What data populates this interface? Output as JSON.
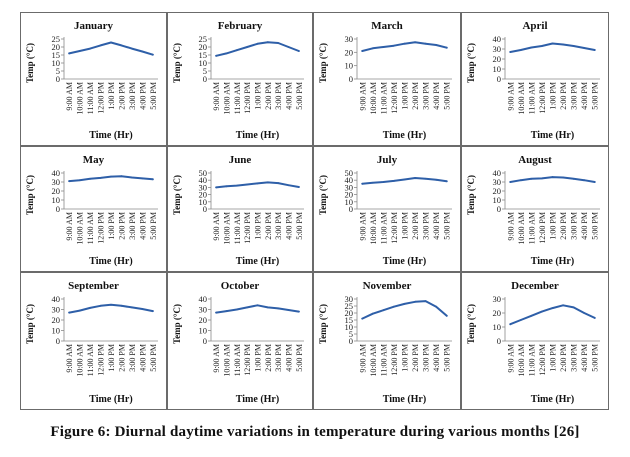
{
  "caption": "Figure 6: Diurnal daytime variations in temperature during various months [26]",
  "chart_data": [
    {
      "type": "line",
      "title": "January",
      "xlabel": "Time (Hr)",
      "ylabel": "Temp (°C)",
      "categories": [
        "9:00 AM",
        "10:00 AM",
        "11:00 AM",
        "12:00 PM",
        "1:00 PM",
        "2:00 PM",
        "3:00 PM",
        "4:00 PM",
        "5:00 PM"
      ],
      "yticks": [
        0,
        5,
        10,
        15,
        20,
        25
      ],
      "ylim": [
        0,
        25
      ],
      "values": [
        16,
        17.5,
        19,
        21,
        22.8,
        21,
        19,
        17.2,
        15.2
      ],
      "color": "#2e5fa8"
    },
    {
      "type": "line",
      "title": "February",
      "xlabel": "Time (Hr)",
      "ylabel": "Temp (°C)",
      "categories": [
        "9:00 AM",
        "10:00 AM",
        "11:00 AM",
        "12:00 PM",
        "1:00 PM",
        "2:00 PM",
        "3:00 PM",
        "4:00 PM",
        "5:00 PM"
      ],
      "yticks": [
        0,
        5,
        10,
        15,
        20,
        25
      ],
      "ylim": [
        0,
        25
      ],
      "values": [
        14.5,
        16,
        18,
        20,
        22,
        23,
        22.5,
        20,
        17.5
      ],
      "color": "#2e5fa8"
    },
    {
      "type": "line",
      "title": "March",
      "xlabel": "Time (Hr)",
      "ylabel": "Temp (°C)",
      "categories": [
        "9:00 AM",
        "10:00 AM",
        "11:00 AM",
        "12:00 PM",
        "1:00 PM",
        "2:00 PM",
        "3:00 PM",
        "4:00 PM",
        "5:00 PM"
      ],
      "yticks": [
        0,
        10,
        20,
        30
      ],
      "ylim": [
        0,
        30
      ],
      "values": [
        21,
        23,
        24,
        25,
        26.5,
        27.5,
        26.5,
        25.5,
        23.5
      ],
      "color": "#2e5fa8"
    },
    {
      "type": "line",
      "title": "April",
      "xlabel": "Time (Hr)",
      "ylabel": "Temp (°C)",
      "categories": [
        "9:00 AM",
        "10:00 AM",
        "11:00 AM",
        "12:00 PM",
        "1:00 PM",
        "2:00 PM",
        "3:00 PM",
        "4:00 PM",
        "5:00 PM"
      ],
      "yticks": [
        0,
        10,
        20,
        30,
        40
      ],
      "ylim": [
        0,
        40
      ],
      "values": [
        27,
        29,
        31.5,
        33,
        35.5,
        34.5,
        33,
        31,
        29
      ],
      "color": "#2e5fa8"
    },
    {
      "type": "line",
      "title": "May",
      "xlabel": "Time (Hr)",
      "ylabel": "Temp (°C)",
      "categories": [
        "9:00 AM",
        "10:00 AM",
        "11:00 AM",
        "12:00 PM",
        "1:00 PM",
        "2:00 PM",
        "3:00 PM",
        "4:00 PM",
        "5:00 PM"
      ],
      "yticks": [
        0,
        10,
        20,
        30,
        40
      ],
      "ylim": [
        0,
        40
      ],
      "values": [
        31,
        32,
        33.5,
        34.5,
        36,
        36.5,
        35,
        34,
        33
      ],
      "color": "#2e5fa8"
    },
    {
      "type": "line",
      "title": "June",
      "xlabel": "Time (Hr)",
      "ylabel": "Temp (°C)",
      "categories": [
        "9:00 AM",
        "10:00 AM",
        "11:00 AM",
        "12:00 PM",
        "1:00 PM",
        "2:00 PM",
        "3:00 PM",
        "4:00 PM",
        "5:00 PM"
      ],
      "yticks": [
        0,
        10,
        20,
        30,
        40,
        50
      ],
      "ylim": [
        0,
        50
      ],
      "values": [
        30,
        31.5,
        32.5,
        34,
        35.5,
        37,
        36,
        33,
        30.5
      ],
      "color": "#2e5fa8"
    },
    {
      "type": "line",
      "title": "July",
      "xlabel": "Time (Hr)",
      "ylabel": "Temp (°C)",
      "categories": [
        "9:00 AM",
        "10:00 AM",
        "11:00 AM",
        "12:00 PM",
        "1:00 PM",
        "2:00 PM",
        "3:00 PM",
        "4:00 PM",
        "5:00 PM"
      ],
      "yticks": [
        0,
        10,
        20,
        30,
        40,
        50
      ],
      "ylim": [
        0,
        50
      ],
      "values": [
        35,
        36.5,
        37.5,
        39,
        41,
        43,
        42,
        40.5,
        38.5
      ],
      "color": "#2e5fa8"
    },
    {
      "type": "line",
      "title": "August",
      "xlabel": "Time (Hr)",
      "ylabel": "Temp (°C)",
      "categories": [
        "9:00 AM",
        "10:00 AM",
        "11:00 AM",
        "12:00 PM",
        "1:00 PM",
        "2:00 PM",
        "3:00 PM",
        "4:00 PM",
        "5:00 PM"
      ],
      "yticks": [
        0,
        10,
        20,
        30,
        40
      ],
      "ylim": [
        0,
        40
      ],
      "values": [
        30,
        32,
        33.5,
        34,
        35.5,
        35,
        33.5,
        32,
        30
      ],
      "color": "#2e5fa8"
    },
    {
      "type": "line",
      "title": "September",
      "xlabel": "Time (Hr)",
      "ylabel": "Temp (°C)",
      "categories": [
        "9:00 AM",
        "10:00 AM",
        "11:00 AM",
        "12:00 PM",
        "1:00 PM",
        "2:00 PM",
        "3:00 PM",
        "4:00 PM",
        "5:00 PM"
      ],
      "yticks": [
        0,
        10,
        20,
        30,
        40
      ],
      "ylim": [
        0,
        40
      ],
      "values": [
        27,
        29,
        31.5,
        33.5,
        34.5,
        33.5,
        32,
        30.5,
        28.5
      ],
      "color": "#2e5fa8"
    },
    {
      "type": "line",
      "title": "October",
      "xlabel": "Time (Hr)",
      "ylabel": "Temp (°C)",
      "categories": [
        "9:00 AM",
        "10:00 AM",
        "11:00 AM",
        "12:00 PM",
        "1:00 PM",
        "2:00 PM",
        "3:00 PM",
        "4:00 PM",
        "5:00 PM"
      ],
      "yticks": [
        0,
        10,
        20,
        30,
        40
      ],
      "ylim": [
        0,
        40
      ],
      "values": [
        27,
        28.5,
        30,
        32,
        34,
        32,
        31,
        29.5,
        28
      ],
      "color": "#2e5fa8"
    },
    {
      "type": "line",
      "title": "November",
      "xlabel": "Time (Hr)",
      "ylabel": "Temp (°C)",
      "categories": [
        "9:00 AM",
        "10:00 AM",
        "11:00 AM",
        "12:00 PM",
        "1:00 PM",
        "2:00 PM",
        "3:00 PM",
        "4:00 PM",
        "5:00 PM"
      ],
      "yticks": [
        0,
        5,
        10,
        15,
        20,
        25,
        30
      ],
      "ylim": [
        0,
        30
      ],
      "values": [
        16,
        19.5,
        22,
        24.5,
        26.5,
        28,
        28.5,
        24.5,
        18
      ],
      "color": "#2e5fa8"
    },
    {
      "type": "line",
      "title": "December",
      "xlabel": "Time (Hr)",
      "ylabel": "Temp (°C)",
      "categories": [
        "9:00 AM",
        "10:00 AM",
        "11:00 AM",
        "12:00 PM",
        "1:00 PM",
        "2:00 PM",
        "3:00 PM",
        "4:00 PM",
        "5:00 PM"
      ],
      "yticks": [
        0,
        10,
        20,
        30
      ],
      "ylim": [
        0,
        30
      ],
      "values": [
        12,
        15,
        18,
        21,
        23.5,
        25.5,
        24,
        20,
        16.5
      ],
      "color": "#2e5fa8"
    }
  ]
}
